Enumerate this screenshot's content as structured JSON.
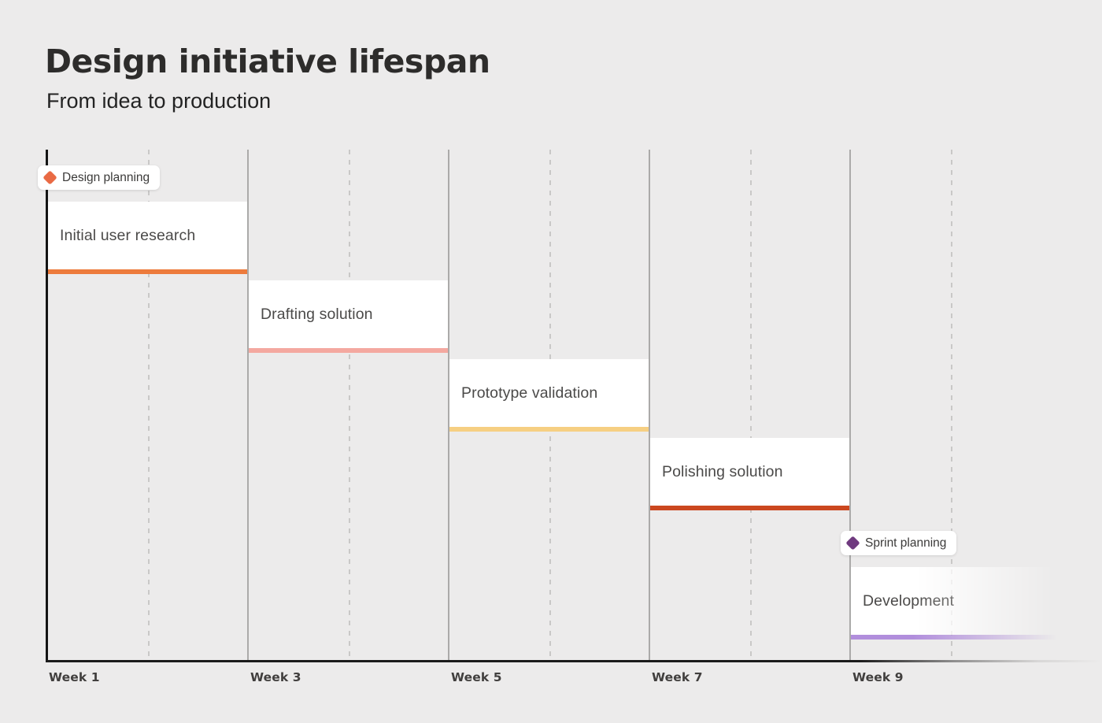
{
  "header": {
    "title": "Design initiative lifespan",
    "subtitle": "From idea to production"
  },
  "chart_data": {
    "type": "gantt",
    "title": "Design initiative lifespan",
    "subtitle": "From idea to production",
    "x_unit": "weeks",
    "x_range": [
      1,
      11
    ],
    "x_ticks": [
      "Week 1",
      "Week 3",
      "Week 5",
      "Week 7",
      "Week 9"
    ],
    "gridlines": {
      "solid_weeks": [
        3,
        5,
        7,
        9
      ],
      "dashed_weeks": [
        2,
        4,
        6,
        8,
        10
      ]
    },
    "tasks": [
      {
        "label": "Initial user research",
        "start_week": 1,
        "end_week": 3,
        "color": "#ED7B3C",
        "fade_out": false
      },
      {
        "label": "Drafting solution",
        "start_week": 3,
        "end_week": 5,
        "color": "#F4A8A0",
        "fade_out": false
      },
      {
        "label": "Prototype validation",
        "start_week": 5,
        "end_week": 7,
        "color": "#F6CF82",
        "fade_out": false
      },
      {
        "label": "Polishing solution",
        "start_week": 7,
        "end_week": 9,
        "color": "#CB471F",
        "fade_out": false
      },
      {
        "label": "Development",
        "start_week": 9,
        "end_week": 11,
        "color": "#B18EDC",
        "fade_out": true
      }
    ],
    "milestones": [
      {
        "label": "Design planning",
        "week": 1,
        "color": "#E96A44"
      },
      {
        "label": "Sprint planning",
        "week": 9,
        "color": "#6F3A7F"
      }
    ]
  }
}
